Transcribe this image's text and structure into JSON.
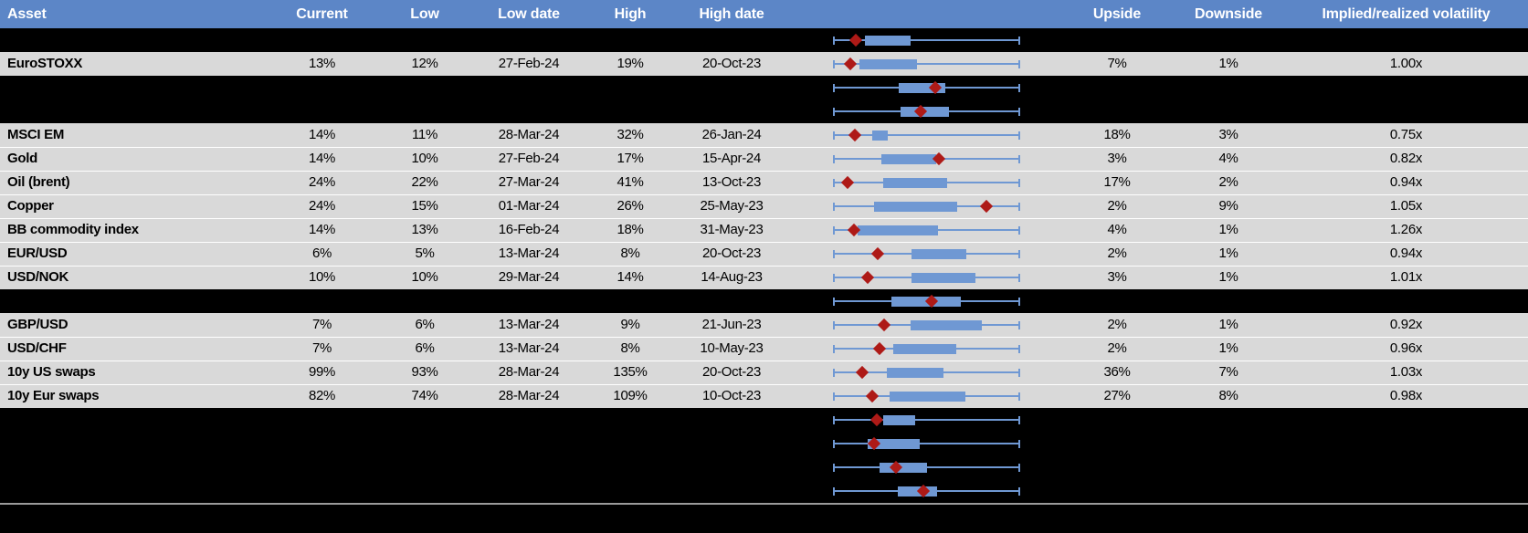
{
  "colors": {
    "header_bg": "#5c86c7",
    "header_text": "#ffffff",
    "row_bg": "#d9d9d9",
    "hidden_row_bg": "#000000",
    "box_fill": "#6f98d3",
    "whisker": "#6f98d3",
    "marker": "#ae1a17",
    "separator": "#9a9a9a"
  },
  "header": {
    "asset": "Asset",
    "current": "Current",
    "low": "Low",
    "low_date": "Low date",
    "high": "High",
    "high_date": "High date",
    "upside": "Upside",
    "downside": "Downside",
    "implied": "Implied/realized volatility"
  },
  "rows": [
    {
      "type": "hidden",
      "plot": {
        "whisker_min": 0,
        "whisker_max": 1,
        "box_start": 0.17,
        "box_end": 0.415,
        "marker": 0.13
      }
    },
    {
      "type": "data",
      "asset": "EuroSTOXX",
      "current": "13%",
      "low": "12%",
      "low_date": "27-Feb-24",
      "high": "19%",
      "high_date": "20-Oct-23",
      "upside": "7%",
      "downside": "1%",
      "ratio": "1.00x",
      "plot": {
        "whisker_min": 0,
        "whisker_max": 1,
        "box_start": 0.14,
        "box_end": 0.45,
        "marker": 0.1
      }
    },
    {
      "type": "hidden",
      "plot": {
        "whisker_min": 0,
        "whisker_max": 1,
        "box_start": 0.35,
        "box_end": 0.6,
        "marker": 0.555
      }
    },
    {
      "type": "hidden",
      "plot": {
        "whisker_min": 0,
        "whisker_max": 1,
        "box_start": 0.36,
        "box_end": 0.62,
        "marker": 0.48
      }
    },
    {
      "type": "data",
      "asset": "MSCI EM",
      "current": "14%",
      "low": "11%",
      "low_date": "28-Mar-24",
      "high": "32%",
      "high_date": "26-Jan-24",
      "upside": "18%",
      "downside": "3%",
      "ratio": "0.75x",
      "plot": {
        "whisker_min": 0,
        "whisker_max": 1,
        "box_start": 0.21,
        "box_end": 0.295,
        "marker": 0.125
      }
    },
    {
      "type": "data",
      "asset": "Gold",
      "current": "14%",
      "low": "10%",
      "low_date": "27-Feb-24",
      "high": "17%",
      "high_date": "15-Apr-24",
      "upside": "3%",
      "downside": "4%",
      "ratio": "0.82x",
      "plot": {
        "whisker_min": 0,
        "whisker_max": 1,
        "box_start": 0.26,
        "box_end": 0.55,
        "marker": 0.575
      }
    },
    {
      "type": "data",
      "asset": "Oil (brent)",
      "current": "24%",
      "low": "22%",
      "low_date": "27-Mar-24",
      "high": "41%",
      "high_date": "13-Oct-23",
      "upside": "17%",
      "downside": "2%",
      "ratio": "0.94x",
      "plot": {
        "whisker_min": 0,
        "whisker_max": 1,
        "box_start": 0.27,
        "box_end": 0.61,
        "marker": 0.09
      }
    },
    {
      "type": "data",
      "asset": "Copper",
      "current": "24%",
      "low": "15%",
      "low_date": "01-Mar-24",
      "high": "26%",
      "high_date": "25-May-23",
      "upside": "2%",
      "downside": "9%",
      "ratio": "1.05x",
      "plot": {
        "whisker_min": 0,
        "whisker_max": 1,
        "box_start": 0.22,
        "box_end": 0.663,
        "marker": 0.83
      }
    },
    {
      "type": "data",
      "asset": "BB commodity index",
      "current": "14%",
      "low": "13%",
      "low_date": "16-Feb-24",
      "high": "18%",
      "high_date": "31-May-23",
      "upside": "4%",
      "downside": "1%",
      "ratio": "1.26x",
      "plot": {
        "whisker_min": 0,
        "whisker_max": 1,
        "box_start": 0.13,
        "box_end": 0.56,
        "marker": 0.12
      }
    },
    {
      "type": "data",
      "asset": "EUR/USD",
      "current": "6%",
      "low": "5%",
      "low_date": "13-Mar-24",
      "high": "8%",
      "high_date": "20-Oct-23",
      "upside": "2%",
      "downside": "1%",
      "ratio": "0.94x",
      "plot": {
        "whisker_min": 0,
        "whisker_max": 1,
        "box_start": 0.42,
        "box_end": 0.712,
        "marker": 0.25
      }
    },
    {
      "type": "data",
      "asset": "USD/NOK",
      "current": "10%",
      "low": "10%",
      "low_date": "29-Mar-24",
      "high": "14%",
      "high_date": "14-Aug-23",
      "upside": "3%",
      "downside": "1%",
      "ratio": "1.01x",
      "plot": {
        "whisker_min": 0,
        "whisker_max": 1,
        "box_start": 0.42,
        "box_end": 0.76,
        "marker": 0.195
      }
    },
    {
      "type": "hidden",
      "plot": {
        "whisker_min": 0,
        "whisker_max": 1,
        "box_start": 0.31,
        "box_end": 0.683,
        "marker": 0.535
      }
    },
    {
      "type": "data",
      "asset": "GBP/USD",
      "current": "7%",
      "low": "6%",
      "low_date": "13-Mar-24",
      "high": "9%",
      "high_date": "21-Jun-23",
      "upside": "2%",
      "downside": "1%",
      "ratio": "0.92x",
      "plot": {
        "whisker_min": 0,
        "whisker_max": 1,
        "box_start": 0.415,
        "box_end": 0.795,
        "marker": 0.285
      }
    },
    {
      "type": "data",
      "asset": "USD/CHF",
      "current": "7%",
      "low": "6%",
      "low_date": "13-Mar-24",
      "high": "8%",
      "high_date": "10-May-23",
      "upside": "2%",
      "downside": "1%",
      "ratio": "0.96x",
      "plot": {
        "whisker_min": 0,
        "whisker_max": 1,
        "box_start": 0.32,
        "box_end": 0.658,
        "marker": 0.26
      }
    },
    {
      "type": "data",
      "asset": "10y US swaps",
      "current": "99%",
      "low": "93%",
      "low_date": "28-Mar-24",
      "high": "135%",
      "high_date": "20-Oct-23",
      "upside": "36%",
      "downside": "7%",
      "ratio": "1.03x",
      "plot": {
        "whisker_min": 0,
        "whisker_max": 1,
        "box_start": 0.29,
        "box_end": 0.59,
        "marker": 0.165
      }
    },
    {
      "type": "data",
      "asset": "10y Eur swaps",
      "current": "82%",
      "low": "74%",
      "low_date": "28-Mar-24",
      "high": "109%",
      "high_date": "10-Oct-23",
      "upside": "27%",
      "downside": "8%",
      "ratio": "0.98x",
      "plot": {
        "whisker_min": 0,
        "whisker_max": 1,
        "box_start": 0.3,
        "box_end": 0.707,
        "marker": 0.22
      }
    },
    {
      "type": "hidden",
      "plot": {
        "whisker_min": 0,
        "whisker_max": 1,
        "box_start": 0.27,
        "box_end": 0.44,
        "marker": 0.245
      }
    },
    {
      "type": "hidden",
      "plot": {
        "whisker_min": 0,
        "whisker_max": 1,
        "box_start": 0.185,
        "box_end": 0.465,
        "marker": 0.23
      }
    },
    {
      "type": "hidden",
      "plot": {
        "whisker_min": 0,
        "whisker_max": 1,
        "box_start": 0.25,
        "box_end": 0.5,
        "marker": 0.345
      }
    },
    {
      "type": "hidden",
      "plot": {
        "whisker_min": 0,
        "whisker_max": 1,
        "box_start": 0.345,
        "box_end": 0.555,
        "marker": 0.49
      }
    }
  ]
}
